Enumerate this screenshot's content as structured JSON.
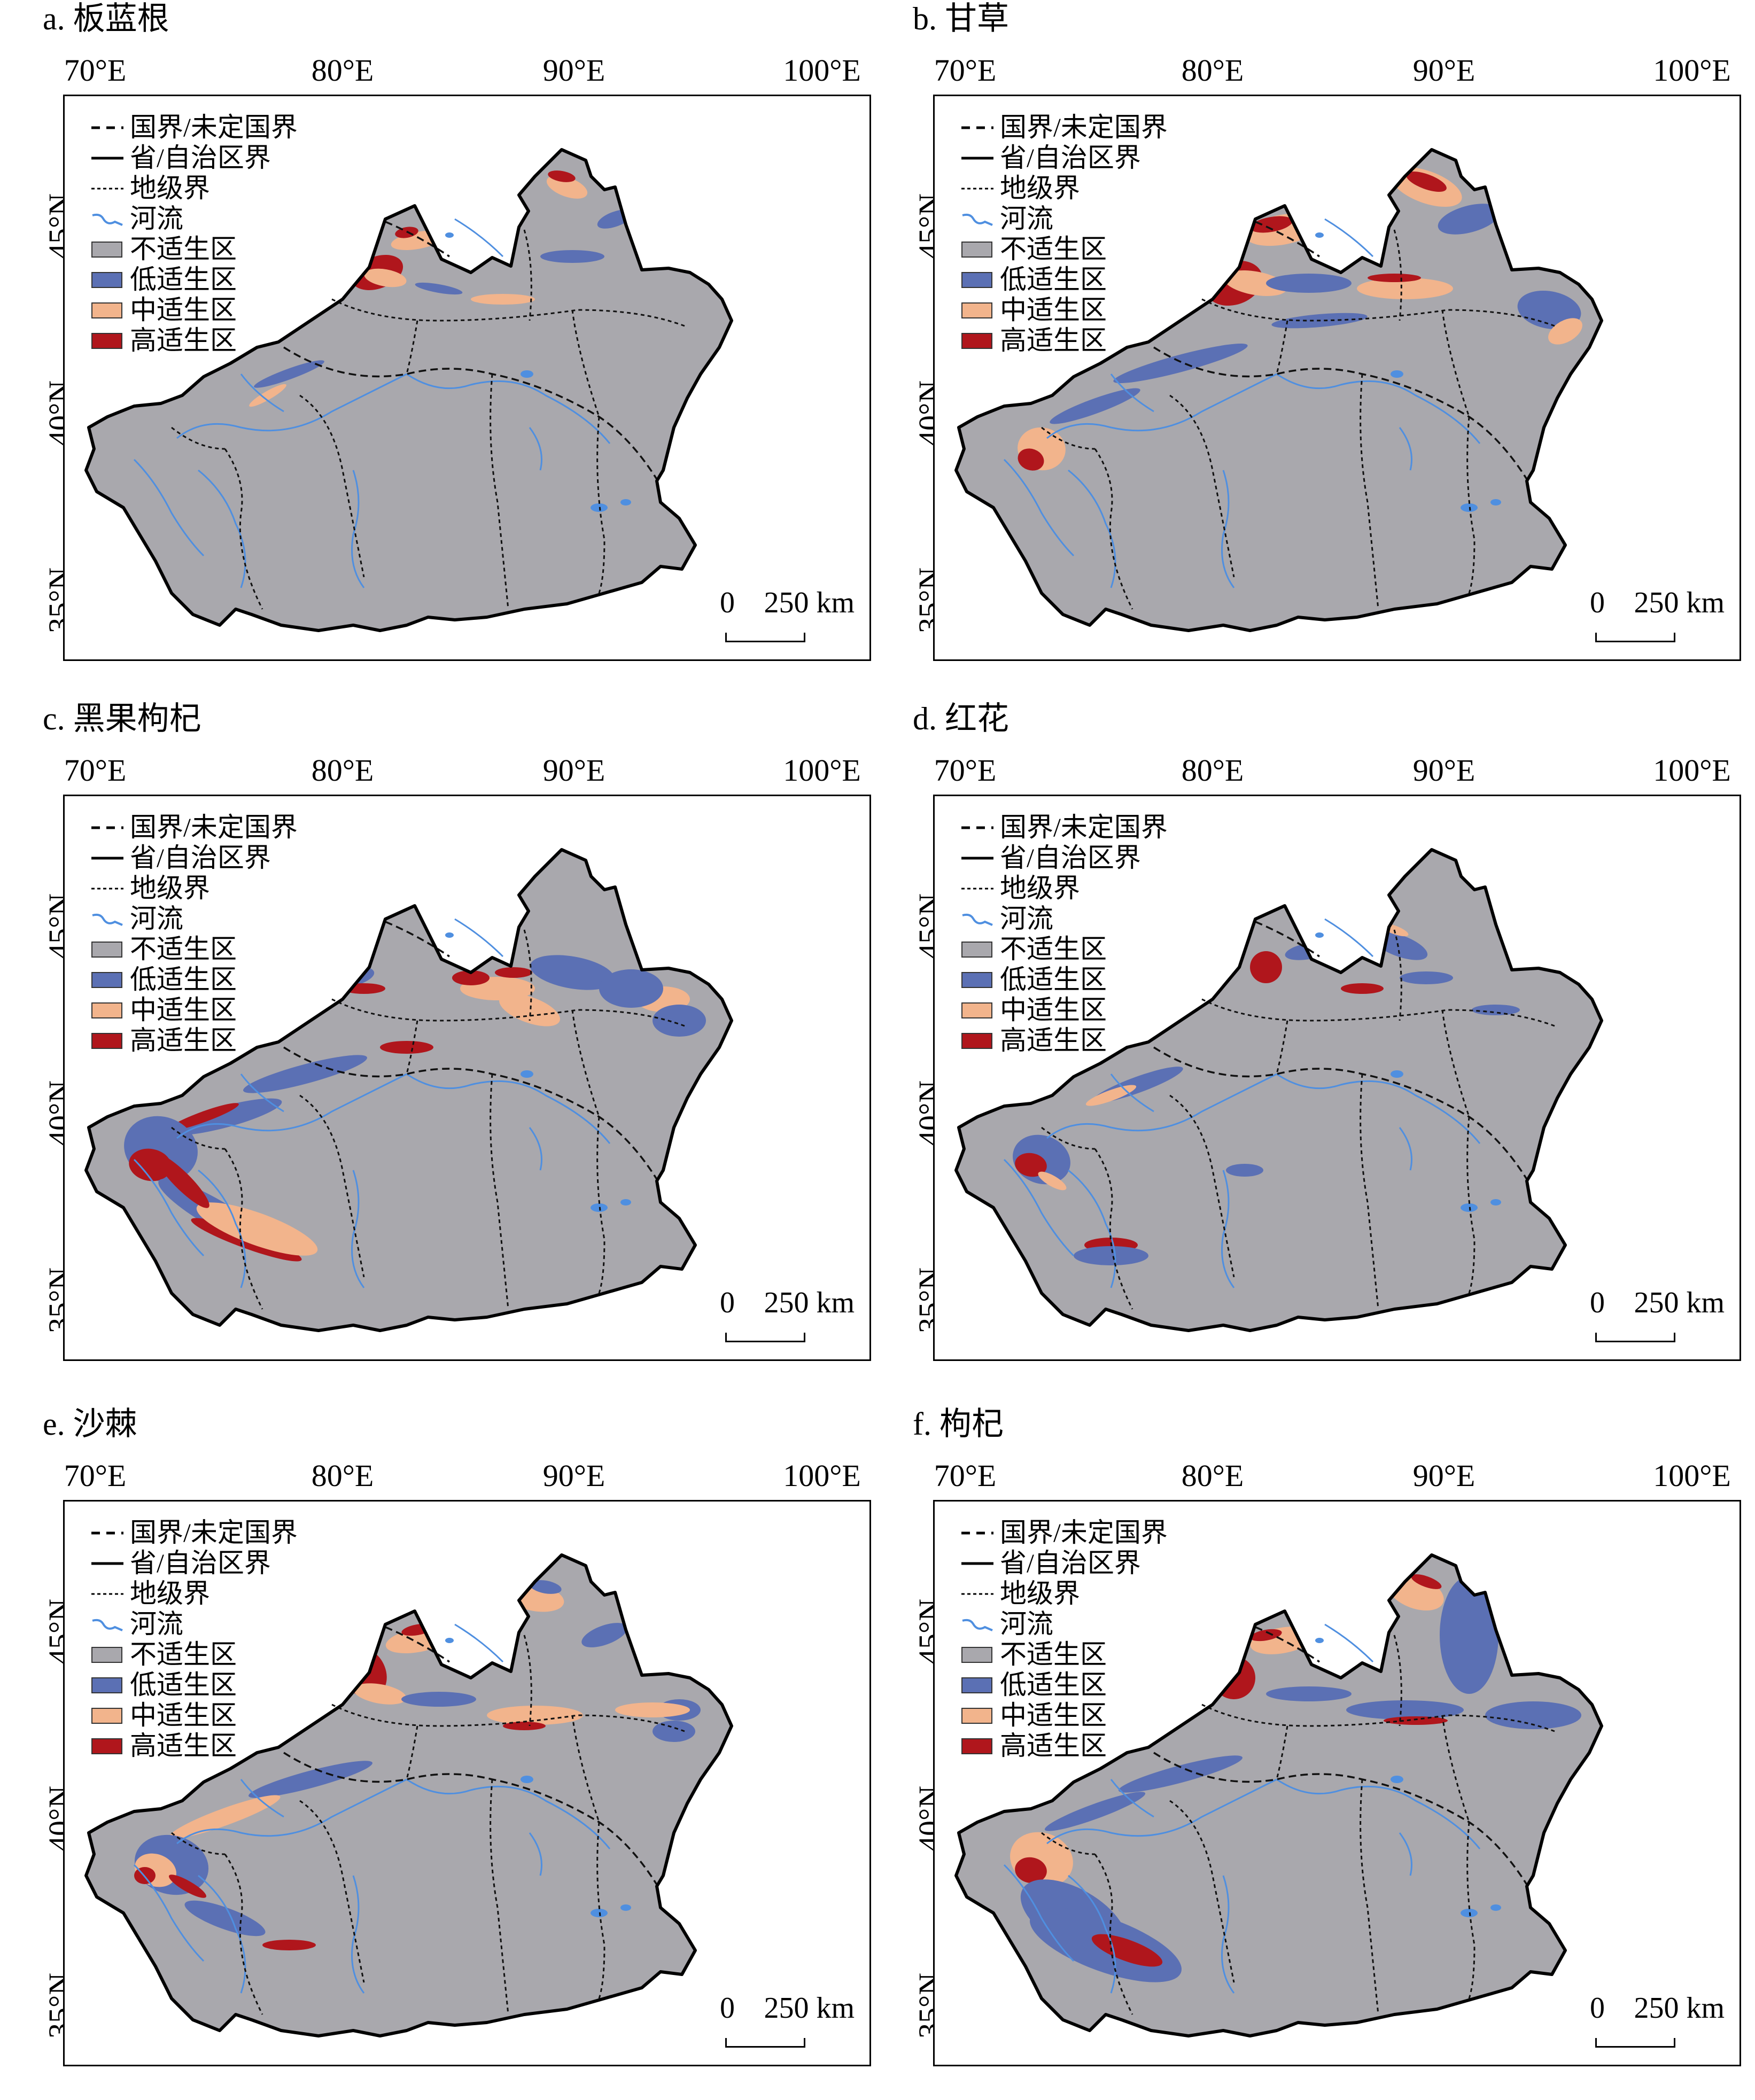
{
  "legend": {
    "national_border": "国界/未定国界",
    "provincial_border": "省/自治区界",
    "prefecture_border": "地级界",
    "river": "河流",
    "class_unsuitable": "不适生区",
    "class_low": "低适生区",
    "class_medium": "中适生区",
    "class_high": "高适生区"
  },
  "colors": {
    "unsuitable": "#a9a8ad",
    "low": "#5b70b4",
    "medium": "#f2b48c",
    "high": "#b0161c",
    "river": "#4f8fe0"
  },
  "axes": {
    "lon_labels": [
      "70°E",
      "80°E",
      "90°E",
      "100°E"
    ],
    "lat_labels": [
      "45°N",
      "40°N",
      "35°N"
    ]
  },
  "scale": {
    "zero": "0",
    "distance": "250 km"
  },
  "panels": [
    {
      "id": "a",
      "title": "a. 板蓝根"
    },
    {
      "id": "b",
      "title": "b. 甘草"
    },
    {
      "id": "c",
      "title": "c. 黑果枸杞"
    },
    {
      "id": "d",
      "title": "d. 红花"
    },
    {
      "id": "e",
      "title": "e. 沙棘"
    },
    {
      "id": "f",
      "title": "f. 枸杞"
    }
  ]
}
